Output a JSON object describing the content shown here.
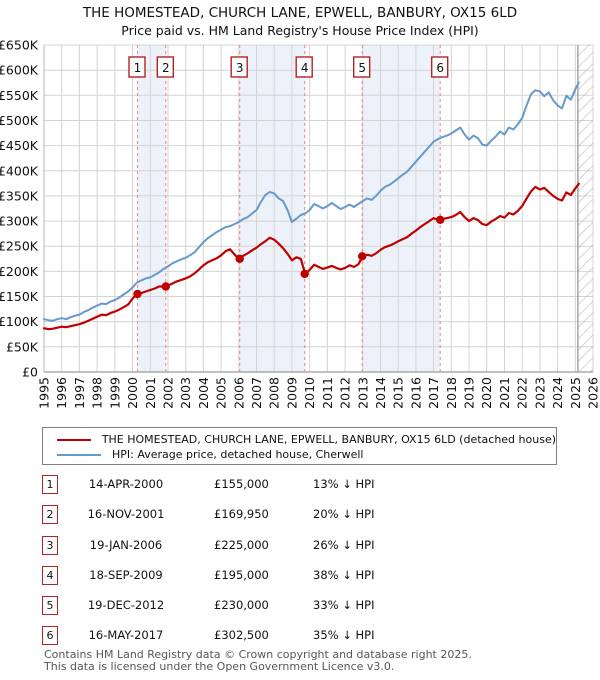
{
  "title": {
    "line1": "THE HOMESTEAD, CHURCH LANE, EPWELL, BANBURY, OX15 6LD",
    "line2": "Price paid vs. HM Land Registry's House Price Index (HPI)"
  },
  "legend": {
    "series1_label": "THE HOMESTEAD, CHURCH LANE, EPWELL, BANBURY, OX15 6LD (detached house)",
    "series2_label": "HPI: Average price, detached house, Cherwell"
  },
  "colors": {
    "price_line": "#c00000",
    "hpi_line": "#6699cc",
    "sale_dash": "#f28a8a",
    "band_fill": "#edf2fa",
    "grid": "#d4d4d4",
    "axis": "#999999",
    "hatch": "#bbbbbb",
    "marker_box_border": "#b52222",
    "text": "#111111"
  },
  "chart_data": {
    "type": "line",
    "title": "Price paid vs. HM Land Registry's House Price Index (HPI)",
    "xlabel": "Year",
    "ylabel": "Price (GBP)",
    "x_domain": [
      1995,
      2026
    ],
    "y_domain_thousands": [
      0,
      650
    ],
    "grid": true,
    "units": "GBP thousands",
    "y_ticks": [
      {
        "v": 0,
        "label": "£0"
      },
      {
        "v": 50,
        "label": "£50K"
      },
      {
        "v": 100,
        "label": "£100K"
      },
      {
        "v": 150,
        "label": "£150K"
      },
      {
        "v": 200,
        "label": "£200K"
      },
      {
        "v": 250,
        "label": "£250K"
      },
      {
        "v": 300,
        "label": "£300K"
      },
      {
        "v": 350,
        "label": "£350K"
      },
      {
        "v": 400,
        "label": "£400K"
      },
      {
        "v": 450,
        "label": "£450K"
      },
      {
        "v": 500,
        "label": "£500K"
      },
      {
        "v": 550,
        "label": "£550K"
      },
      {
        "v": 600,
        "label": "£600K"
      },
      {
        "v": 650,
        "label": "£650K"
      }
    ],
    "x_ticks": [
      1995,
      1996,
      1997,
      1998,
      1999,
      2000,
      2001,
      2002,
      2003,
      2004,
      2005,
      2006,
      2007,
      2008,
      2009,
      2010,
      2011,
      2012,
      2013,
      2014,
      2015,
      2016,
      2017,
      2018,
      2019,
      2020,
      2021,
      2022,
      2023,
      2024,
      2025,
      2026
    ],
    "x_mode": {
      "start": 1995.0,
      "step": 0.25,
      "end": 2025.2
    },
    "series": [
      {
        "name": "HPI: Average price, detached house, Cherwell",
        "color": "#6699cc",
        "width": 2,
        "values": [
          105,
          103,
          102,
          105,
          107,
          105,
          109,
          112,
          114,
          119,
          123,
          128,
          132,
          136,
          135,
          140,
          143,
          148,
          154,
          160,
          168,
          178,
          182,
          186,
          188,
          193,
          198,
          205,
          210,
          216,
          220,
          224,
          227,
          232,
          238,
          248,
          258,
          266,
          272,
          278,
          283,
          288,
          290,
          294,
          298,
          304,
          308,
          315,
          322,
          338,
          352,
          358,
          355,
          345,
          340,
          322,
          298,
          305,
          312,
          315,
          322,
          334,
          330,
          325,
          330,
          336,
          330,
          324,
          328,
          333,
          328,
          334,
          340,
          345,
          342,
          350,
          360,
          368,
          372,
          378,
          385,
          392,
          398,
          408,
          418,
          428,
          438,
          448,
          458,
          463,
          467,
          470,
          474,
          480,
          486,
          472,
          462,
          470,
          465,
          452,
          450,
          460,
          468,
          478,
          472,
          486,
          482,
          492,
          505,
          530,
          552,
          560,
          558,
          548,
          556,
          540,
          530,
          524,
          549,
          541,
          562,
          575
        ]
      },
      {
        "name": "THE HOMESTEAD, CHURCH LANE, EPWELL, BANBURY, OX15 6LD (detached house)",
        "color": "#c00000",
        "width": 2.2,
        "values": [
          87,
          85,
          86,
          88,
          90,
          89,
          91,
          93,
          95,
          98,
          102,
          106,
          110,
          114,
          113,
          117,
          120,
          124,
          129,
          134,
          146,
          155,
          157,
          160,
          163,
          166,
          170,
          170,
          172,
          176,
          180,
          183,
          186,
          190,
          196,
          204,
          212,
          218,
          222,
          226,
          232,
          240,
          244,
          234,
          225,
          231,
          236,
          242,
          247,
          254,
          260,
          267,
          263,
          255,
          246,
          235,
          222,
          228,
          225,
          195,
          203,
          213,
          209,
          205,
          208,
          211,
          207,
          204,
          207,
          212,
          209,
          214,
          230,
          233,
          231,
          236,
          243,
          248,
          251,
          255,
          260,
          264,
          268,
          275,
          281,
          288,
          294,
          300,
          306,
          302.5,
          304,
          306,
          308,
          312,
          318,
          308,
          300,
          306,
          302,
          294,
          292,
          299,
          304,
          310,
          307,
          316,
          313,
          320,
          330,
          345,
          359,
          368,
          363,
          366,
          358,
          350,
          344,
          341,
          357,
          352,
          365,
          374
        ]
      }
    ],
    "sales": [
      {
        "num": "1",
        "x": 2000.28,
        "price_thousands": 155
      },
      {
        "num": "2",
        "x": 2001.88,
        "price_thousands": 169.95
      },
      {
        "num": "3",
        "x": 2006.05,
        "price_thousands": 225
      },
      {
        "num": "4",
        "x": 2009.72,
        "price_thousands": 195
      },
      {
        "num": "5",
        "x": 2012.97,
        "price_thousands": 230
      },
      {
        "num": "6",
        "x": 2017.37,
        "price_thousands": 302.5
      }
    ],
    "ownership_bands": [
      [
        2000.28,
        2001.88
      ],
      [
        2006.05,
        2009.72
      ],
      [
        2012.97,
        2017.37
      ]
    ],
    "future_hatch_from": 2025.15
  },
  "sales_table": [
    {
      "num": "1",
      "date": "14-APR-2000",
      "price": "£155,000",
      "hpi": "13% ↓ HPI"
    },
    {
      "num": "2",
      "date": "16-NOV-2001",
      "price": "£169,950",
      "hpi": "20% ↓ HPI"
    },
    {
      "num": "3",
      "date": "19-JAN-2006",
      "price": "£225,000",
      "hpi": "26% ↓ HPI"
    },
    {
      "num": "4",
      "date": "18-SEP-2009",
      "price": "£195,000",
      "hpi": "38% ↓ HPI"
    },
    {
      "num": "5",
      "date": "19-DEC-2012",
      "price": "£230,000",
      "hpi": "33% ↓ HPI"
    },
    {
      "num": "6",
      "date": "16-MAY-2017",
      "price": "£302,500",
      "hpi": "35% ↓ HPI"
    }
  ],
  "footer": {
    "line1": "Contains HM Land Registry data © Crown copyright and database right 2025.",
    "line2": "This data is licensed under the Open Government Licence v3.0."
  }
}
